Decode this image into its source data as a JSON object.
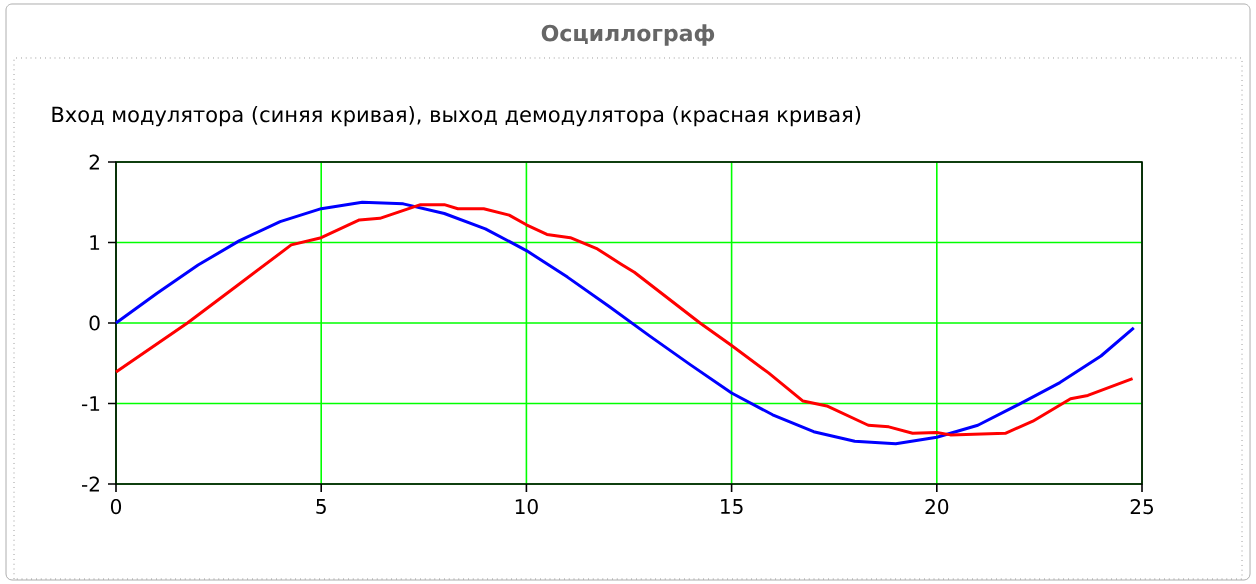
{
  "chart_data": {
    "type": "line",
    "title": "Осциллограф",
    "subtitle": "Вход модулятора (синяя кривая), выход демодулятора (красная кривая)",
    "xlim": [
      0,
      25
    ],
    "ylim": [
      -2,
      2
    ],
    "xticks": [
      0,
      5,
      10,
      15,
      20,
      25
    ],
    "yticks": [
      -2,
      -1,
      0,
      1,
      2
    ],
    "grid": true,
    "marker": "none",
    "line_style": "solid",
    "series": [
      {
        "color": "#0000ff",
        "x": [
          0,
          1,
          2,
          3,
          4,
          5,
          6,
          7,
          8,
          9,
          10,
          11,
          12,
          13,
          14,
          15,
          16,
          17,
          18,
          19,
          20,
          21,
          22,
          23,
          24,
          24.8
        ],
        "values": [
          0,
          0.37,
          0.72,
          1.02,
          1.26,
          1.42,
          1.5,
          1.48,
          1.36,
          1.17,
          0.9,
          0.57,
          0.21,
          -0.16,
          -0.52,
          -0.87,
          -1.14,
          -1.35,
          -1.47,
          -1.5,
          -1.42,
          -1.27,
          -1.01,
          -0.74,
          -0.41,
          -0.06
        ]
      },
      {
        "color": "#ff0000",
        "x": [
          0,
          1.74,
          2.94,
          4.27,
          5,
          5.93,
          6.43,
          7.42,
          8.0,
          8.33,
          8.96,
          9.58,
          10,
          10.5,
          11.07,
          11.73,
          12.31,
          12.63,
          14.23,
          15,
          15.9,
          16.74,
          17.32,
          18.33,
          18.83,
          19.41,
          20,
          20.33,
          21.67,
          22.34,
          23.26,
          23.68,
          24.77
        ],
        "values": [
          -0.61,
          0,
          0.46,
          0.97,
          1.06,
          1.28,
          1.3,
          1.47,
          1.47,
          1.42,
          1.42,
          1.34,
          1.22,
          1.1,
          1.06,
          0.92,
          0.73,
          0.63,
          0,
          -0.28,
          -0.62,
          -0.97,
          -1.03,
          -1.27,
          -1.29,
          -1.37,
          -1.36,
          -1.39,
          -1.37,
          -1.22,
          -0.94,
          -0.9,
          -0.69
        ]
      }
    ]
  }
}
